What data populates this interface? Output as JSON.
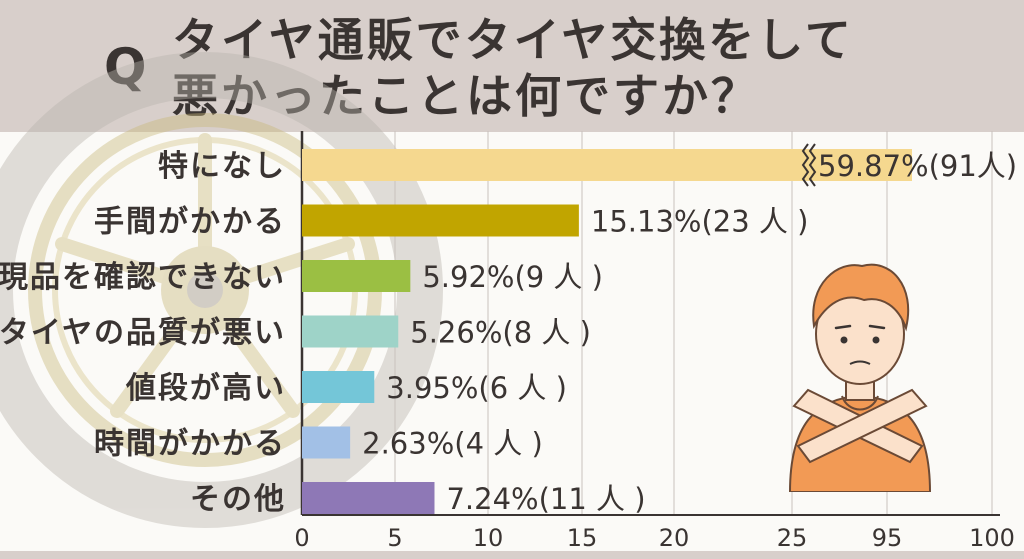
{
  "header": {
    "q_mark": "Q",
    "title_line1": "タイヤ通販でタイヤ交換をして",
    "title_line2": "悪かったことは何ですか？"
  },
  "chart_data": {
    "type": "bar",
    "orientation": "horizontal",
    "axis_break": "between 25 and 95",
    "categories": [
      "特になし",
      "手間がかかる",
      "現品を確認できない",
      "タイヤの品質が悪い",
      "値段が高い",
      "時間がかかる",
      "その他"
    ],
    "values": [
      59.87,
      15.13,
      5.92,
      5.26,
      3.95,
      2.63,
      7.24
    ],
    "data_labels": [
      "59.87%(91人)",
      "15.13%(23 人 )",
      "5.92%(9 人 )",
      "5.26%(8 人 )",
      "3.95%(6 人 )",
      "2.63%(4 人 )",
      "7.24%(11 人 )"
    ],
    "colors": [
      "#f5d88f",
      "#c1a500",
      "#9bbf43",
      "#9ed3c8",
      "#74c6d8",
      "#a2c0e6",
      "#8e78b6"
    ],
    "x_ticks": [
      "0",
      "5",
      "10",
      "15",
      "20",
      "25",
      "95",
      "100"
    ],
    "grid": true
  }
}
